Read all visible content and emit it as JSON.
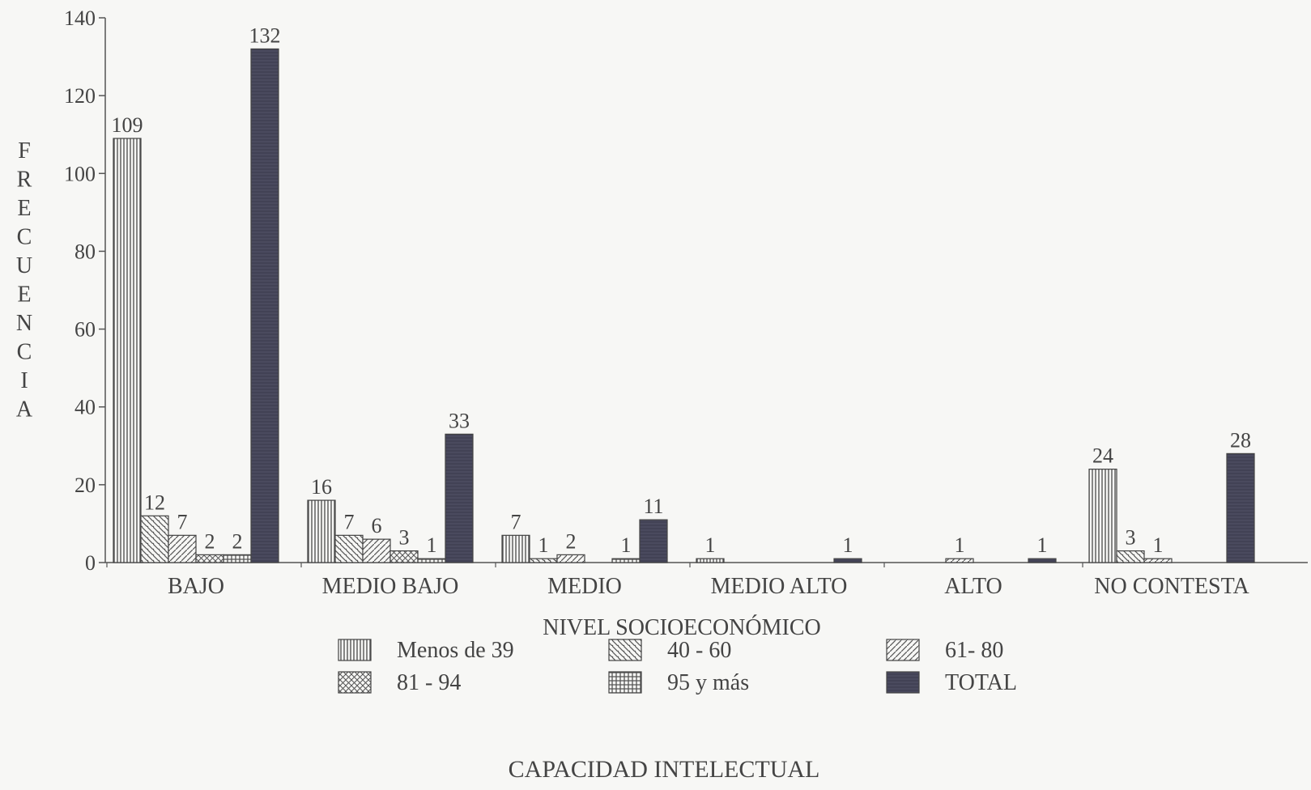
{
  "chart_data": {
    "type": "bar",
    "xlabel": "NIVEL SOCIOECONÓMICO",
    "ylabel": "FRECUENCIA",
    "footer": "CAPACIDAD INTELECTUAL",
    "ylim": [
      0,
      140
    ],
    "yticks": [
      0,
      20,
      40,
      60,
      80,
      100,
      120,
      140
    ],
    "categories": [
      "BAJO",
      "MEDIO BAJO",
      "MEDIO",
      "MEDIO ALTO",
      "ALTO",
      "NO CONTESTA"
    ],
    "series": [
      {
        "name": "Menos de 39",
        "pattern": "vertical",
        "values": [
          109,
          16,
          7,
          1,
          null,
          24
        ]
      },
      {
        "name": "40 - 60",
        "pattern": "diag-down",
        "values": [
          12,
          7,
          1,
          null,
          null,
          3
        ]
      },
      {
        "name": "61- 80",
        "pattern": "diag-up",
        "values": [
          7,
          6,
          2,
          null,
          1,
          1
        ]
      },
      {
        "name": "81 - 94",
        "pattern": "cross",
        "values": [
          2,
          3,
          null,
          null,
          null,
          null
        ]
      },
      {
        "name": "95 y más",
        "pattern": "grid",
        "values": [
          2,
          1,
          1,
          null,
          null,
          null
        ]
      },
      {
        "name": "TOTAL",
        "pattern": "solid",
        "values": [
          132,
          33,
          11,
          1,
          1,
          28
        ]
      }
    ],
    "grid": false,
    "legend_position": "bottom",
    "colors": {
      "ink": "#444444",
      "total_fill": "#4a4a5e",
      "pattern_stroke": "#555555",
      "background": "#f7f7f5"
    }
  }
}
